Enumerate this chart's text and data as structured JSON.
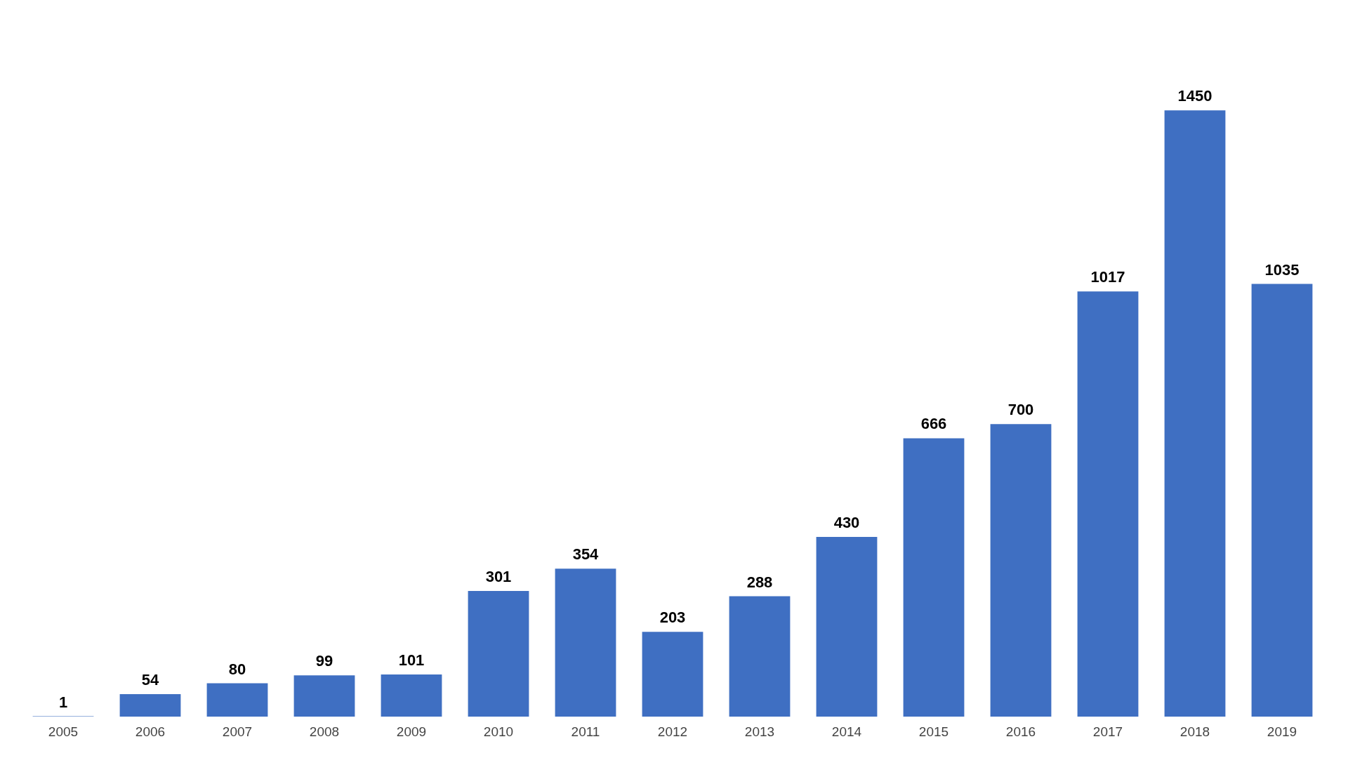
{
  "chart_data": {
    "type": "bar",
    "categories": [
      "2005",
      "2006",
      "2007",
      "2008",
      "2009",
      "2010",
      "2011",
      "2012",
      "2013",
      "2014",
      "2015",
      "2016",
      "2017",
      "2018",
      "2019"
    ],
    "values": [
      1,
      54,
      80,
      99,
      101,
      301,
      354,
      203,
      288,
      430,
      666,
      700,
      1017,
      1450,
      1035
    ],
    "color": "#3f6fc2",
    "data_labels": true,
    "grid": false,
    "legend": false,
    "tick_labels": "x"
  }
}
